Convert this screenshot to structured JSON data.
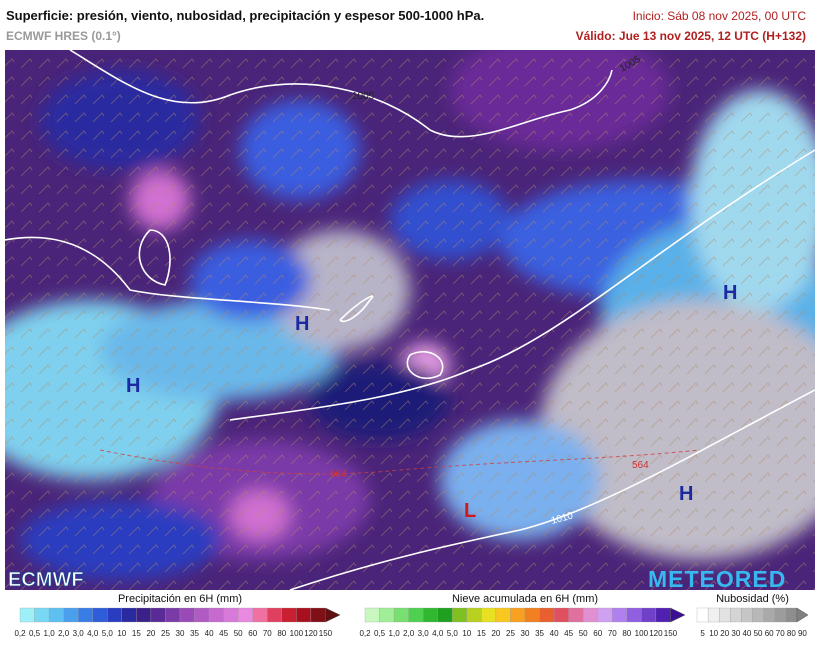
{
  "header": {
    "title": "Superficie: presión, viento, nubosidad, precipitación y espesor 500-1000 hPa.",
    "model": "ECMWF HRES (0.1°)",
    "init": "Inicio: Sáb 08 nov 2025, 00 UTC",
    "valid": "Válido: Jue 13 nov 2025, 12 UTC (H+132)"
  },
  "map": {
    "pressure_centers": [
      "H",
      "H",
      "H",
      "H",
      "L"
    ],
    "isobar_labels": [
      "1005",
      "1005",
      "1010"
    ],
    "thickness_labels": [
      "564",
      "564"
    ]
  },
  "logos": {
    "left": "ECMWF",
    "right": "METEORED"
  },
  "legends": [
    {
      "title": "Precipitación en 6H (mm)",
      "labels": [
        "0,2",
        "0,5",
        "1,0",
        "2,0",
        "3,0",
        "4,0",
        "5,0",
        "10",
        "15",
        "20",
        "25",
        "30",
        "35",
        "40",
        "45",
        "50",
        "60",
        "70",
        "80",
        "100",
        "120",
        "150"
      ],
      "colors": [
        "#9ef0f8",
        "#7ad8f4",
        "#5ec0f0",
        "#4aa0ec",
        "#3a7ce6",
        "#2f5cd8",
        "#2a3cc0",
        "#2a2aa0",
        "#3a2088",
        "#5a2a98",
        "#7a3aa8",
        "#9a4ab8",
        "#b05ac4",
        "#c66ad0",
        "#d87ada",
        "#e88ae0",
        "#f070a0",
        "#e04060",
        "#c82030",
        "#a81020",
        "#801018",
        "#601010"
      ]
    },
    {
      "title": "Nieve acumulada en 6H (mm)",
      "labels": [
        "0,2",
        "0,5",
        "1,0",
        "2,0",
        "3,0",
        "4,0",
        "5,0",
        "10",
        "15",
        "20",
        "25",
        "30",
        "35",
        "40",
        "45",
        "50",
        "60",
        "70",
        "80",
        "100",
        "120",
        "150"
      ],
      "colors": [
        "#c8f8c0",
        "#a0ee98",
        "#78e070",
        "#50d050",
        "#30b830",
        "#20a020",
        "#80c020",
        "#b8d020",
        "#e8e020",
        "#f8c820",
        "#f8a020",
        "#f08020",
        "#e86030",
        "#e05060",
        "#e070a0",
        "#e090d0",
        "#d0a0f0",
        "#b080f0",
        "#9060e0",
        "#7040c8",
        "#5020b0",
        "#3a1090"
      ]
    },
    {
      "title": "Nubosidad (%)",
      "labels": [
        "5",
        "10",
        "20",
        "30",
        "40",
        "50",
        "60",
        "70",
        "80",
        "90"
      ],
      "colors": [
        "#ffffff",
        "#f0f0f0",
        "#e2e2e2",
        "#d4d4d4",
        "#c6c6c6",
        "#b8b8b8",
        "#aaaaaa",
        "#9c9c9c",
        "#8e8e8e",
        "#808080"
      ]
    }
  ]
}
